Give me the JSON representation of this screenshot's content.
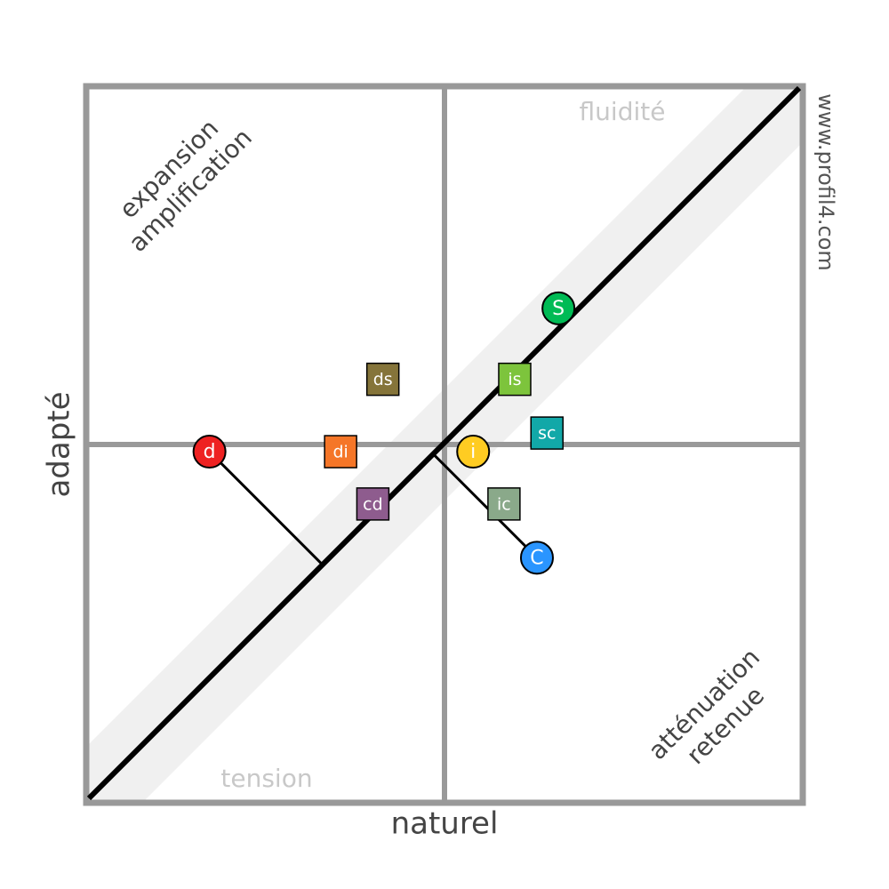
{
  "chart_data": {
    "type": "scatter",
    "x_label": "naturel",
    "y_label": "adapté",
    "xlim": [
      -50,
      50
    ],
    "ylim": [
      -50,
      50
    ],
    "watermark": "www.profil4.com",
    "quadrant_labels": {
      "top_left": [
        "expansion",
        "amplification"
      ],
      "top_right": "fluidité",
      "bottom_left": "tension",
      "bottom_right": [
        "atténuation",
        "retenue"
      ]
    },
    "series": [
      {
        "name": "d",
        "color": "#ee2222",
        "marker": "circle",
        "projection": true,
        "x": [
          -32.8
        ],
        "values": [
          -1.0
        ]
      },
      {
        "name": "S",
        "color": "#00bb55",
        "marker": "circle",
        "x": [
          15.9
        ],
        "values": [
          19.0
        ]
      },
      {
        "name": "i",
        "color": "#ffcc22",
        "marker": "circle",
        "x": [
          4.0
        ],
        "values": [
          -1.0
        ]
      },
      {
        "name": "C",
        "color": "#2a95ff",
        "marker": "circle",
        "projection": true,
        "x": [
          12.9
        ],
        "values": [
          -15.8
        ]
      },
      {
        "name": "ds",
        "color": "#85743a",
        "marker": "square",
        "x": [
          -8.6
        ],
        "values": [
          9.1
        ]
      },
      {
        "name": "is",
        "color": "#7dc43c",
        "marker": "square",
        "x": [
          9.8
        ],
        "values": [
          9.1
        ]
      },
      {
        "name": "sc",
        "color": "#12a8a8",
        "marker": "square",
        "x": [
          14.3
        ],
        "values": [
          1.6
        ]
      },
      {
        "name": "di",
        "color": "#f57628",
        "marker": "square",
        "x": [
          -14.5
        ],
        "values": [
          -1.0
        ]
      },
      {
        "name": "cd",
        "color": "#8e5c8e",
        "marker": "square",
        "x": [
          -10.0
        ],
        "values": [
          -8.3
        ]
      },
      {
        "name": "ic",
        "color": "#8aa98a",
        "marker": "square",
        "x": [
          8.3
        ],
        "values": [
          -8.3
        ]
      }
    ]
  }
}
